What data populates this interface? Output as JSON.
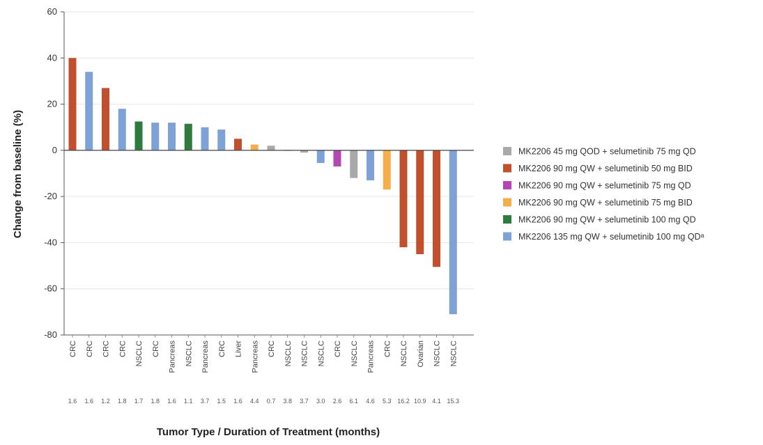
{
  "chart_data": {
    "type": "bar",
    "title": "",
    "ylabel": "Change from baseline (%)",
    "xlabel": "Tumor Type / Duration of Treatment (months)",
    "ylim": [
      -80,
      60
    ],
    "yticks": [
      60,
      40,
      20,
      0,
      -20,
      -40,
      -60,
      -80
    ],
    "grid": true,
    "legend_position": "right",
    "categories": [
      "CRC",
      "CRC",
      "CRC",
      "CRC",
      "NSCLC",
      "CRC",
      "Pancreas",
      "NSCLC",
      "Pancreas",
      "CRC",
      "Liver",
      "Pancreas",
      "CRC",
      "NSCLC",
      "NSCLC",
      "NSCLC",
      "CRC",
      "NSCLC",
      "Pancreas",
      "CRC",
      "NSCLC",
      "Ovarian",
      "NSCLC",
      "NSCLC"
    ],
    "durations": [
      "1.6",
      "1.6",
      "1.2",
      "1.8",
      "1.7",
      "1.8",
      "1.6",
      "1.1",
      "3.7",
      "1.5",
      "1.6",
      "4.4",
      "0.7",
      "3.8",
      "3.7",
      "3.0",
      "2.6",
      "6.1",
      "4.6",
      "5.3",
      "16.2",
      "10.9",
      "4.1",
      "15.3"
    ],
    "values": [
      40,
      34,
      27,
      18,
      12.5,
      12,
      12,
      11.5,
      10,
      9,
      5,
      2.5,
      2,
      -0.3,
      -1,
      -5.5,
      -7,
      -12,
      -13,
      -17,
      -42,
      -45,
      -50.5,
      -71
    ],
    "groups": [
      1,
      5,
      1,
      5,
      4,
      5,
      5,
      4,
      5,
      5,
      1,
      3,
      0,
      0,
      0,
      5,
      2,
      0,
      5,
      3,
      1,
      1,
      1,
      5
    ],
    "series": [
      {
        "name": "MK2206 45 mg QOD + selumetinib 75 mg QD",
        "color": "#a9a9a9"
      },
      {
        "name": "MK2206 90 mg QW + selumetinib 50 mg BID",
        "color": "#c0502e"
      },
      {
        "name": "MK2206 90 mg QW + selumetinib 75 mg QD",
        "color": "#b348b5"
      },
      {
        "name": "MK2206 90 mg QW + selumetinib 75 mg BID",
        "color": "#f5ae4c"
      },
      {
        "name": "MK2206 90 mg QW + selumetinib 100 mg QD",
        "color": "#2f7a3e"
      },
      {
        "name": "MK2206 135 mg QW + selumetinib 100 mg QDᵃ",
        "color": "#7fa2d6"
      }
    ]
  }
}
